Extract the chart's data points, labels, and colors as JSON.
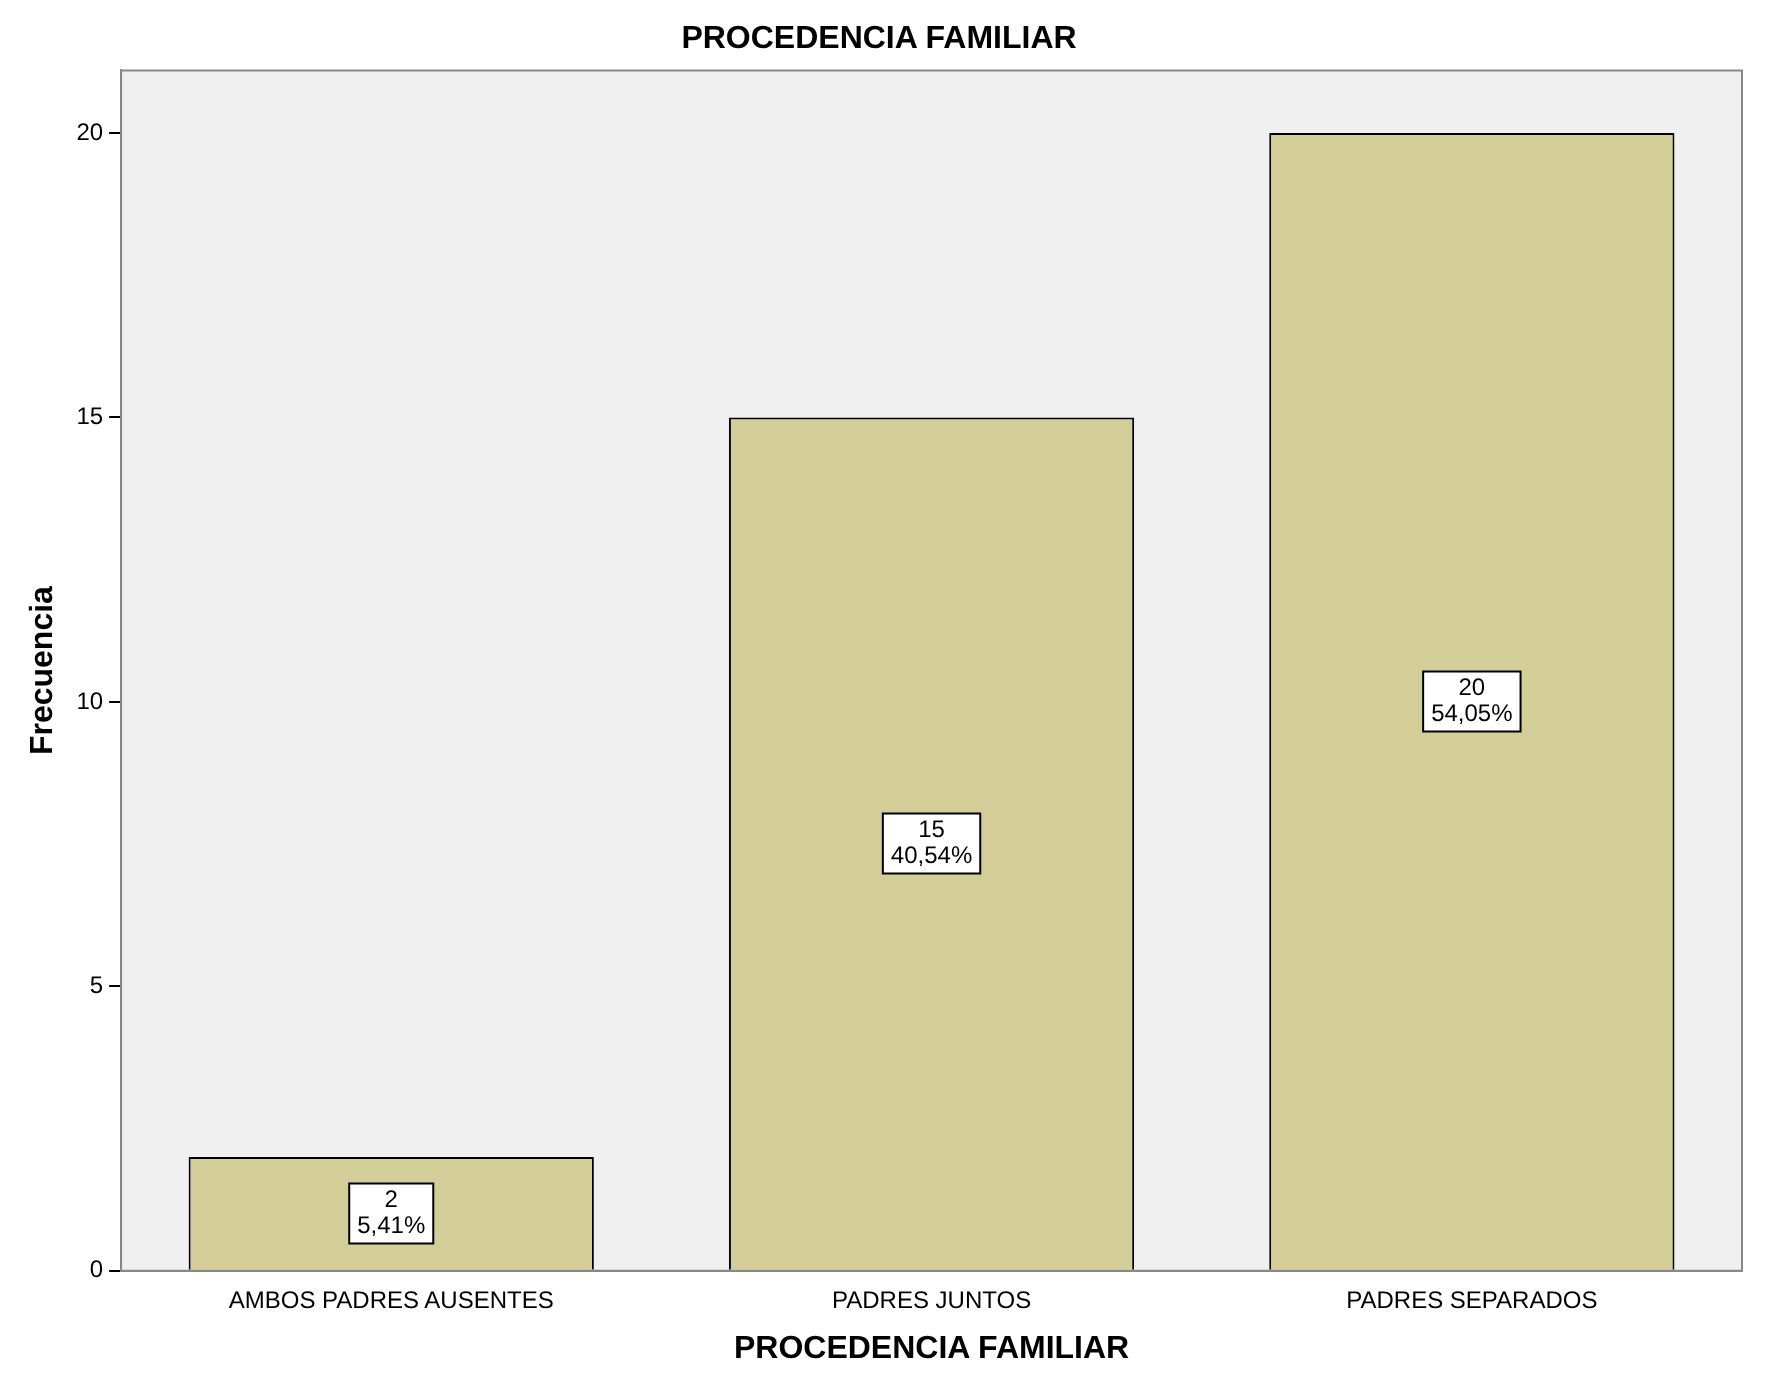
{
  "chart_data": {
    "type": "bar",
    "title": "PROCEDENCIA FAMILIAR",
    "xlabel": "PROCEDENCIA FAMILIAR",
    "ylabel": "Frecuencia",
    "categories": [
      "AMBOS PADRES AUSENTES",
      "PADRES JUNTOS",
      "PADRES SEPARADOS"
    ],
    "values": [
      2,
      15,
      20
    ],
    "color": "#d3ce97",
    "value_labels": [
      "2\n5,41%",
      "15\n40,54%",
      "20\n54,05%"
    ],
    "ylim": [
      0,
      21.1
    ],
    "yticks": [
      0,
      5,
      10,
      15,
      20
    ],
    "grid": false,
    "legend": false
  }
}
